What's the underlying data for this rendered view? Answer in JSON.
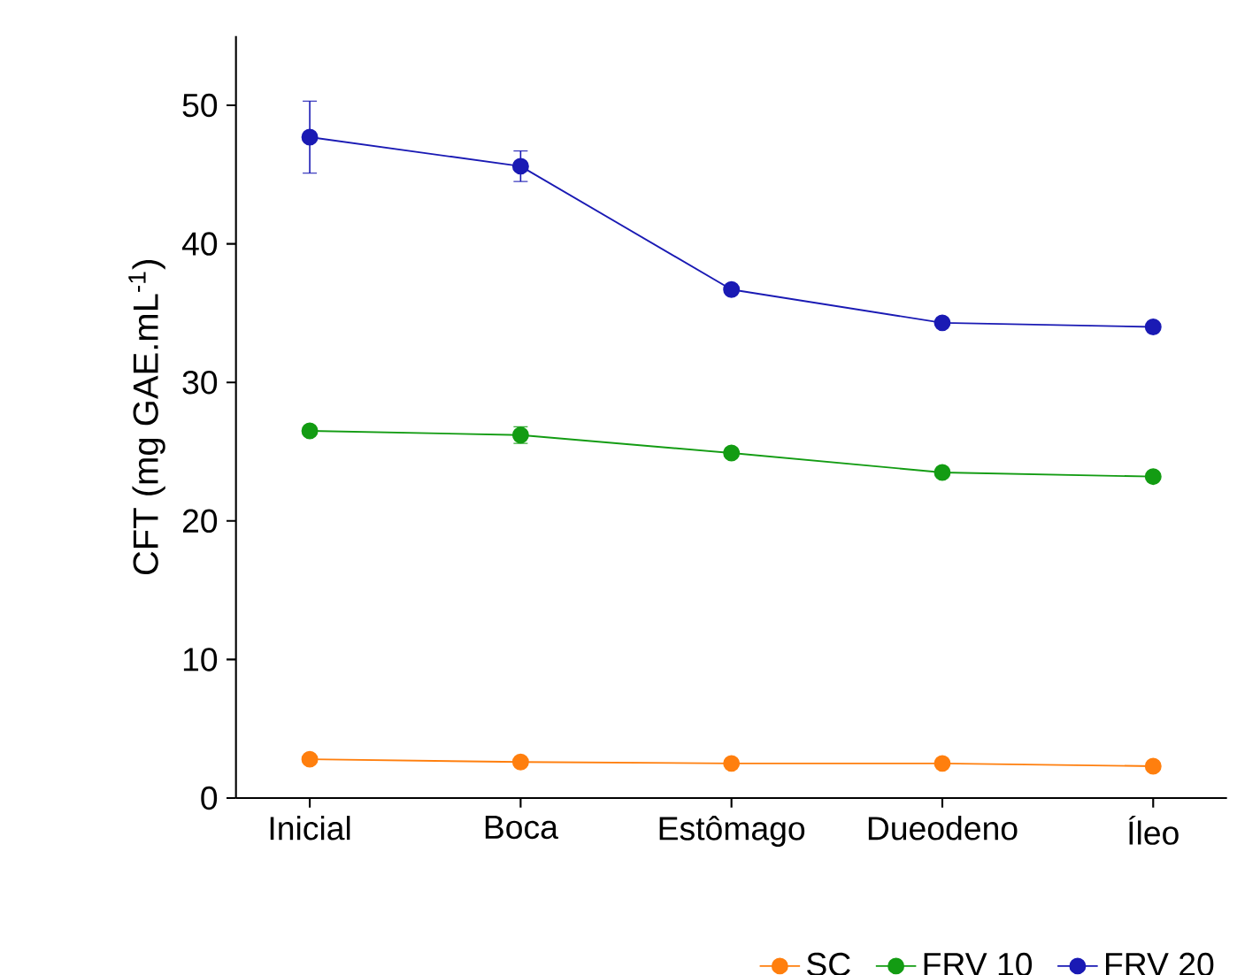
{
  "chart_data": {
    "type": "line",
    "ylabel": "CFT (mg GAE.mL$^{-1}$)",
    "categories": [
      "Inicial",
      "Boca",
      "Estômago",
      "Dueodeno",
      "Íleo"
    ],
    "series": [
      {
        "name": "SC",
        "color": "#ff7f0e",
        "values": [
          2.8,
          2.6,
          2.5,
          2.5,
          2.3
        ]
      },
      {
        "name": "FRV 10",
        "color": "#139c13",
        "values": [
          26.5,
          26.2,
          24.9,
          23.5,
          23.2
        ],
        "errors": [
          null,
          0.6,
          null,
          null,
          null
        ]
      },
      {
        "name": "FRV 20",
        "color": "#1a1ab4",
        "values": [
          47.7,
          45.6,
          36.7,
          34.3,
          34.0
        ],
        "errors": [
          2.6,
          1.1,
          null,
          null,
          null
        ]
      }
    ],
    "ylim": [
      0,
      55
    ],
    "yticks": [
      0,
      10,
      20,
      30,
      40,
      50
    ],
    "legend": "bottom",
    "marker": "circle",
    "line_style": "solid",
    "grid": false
  }
}
